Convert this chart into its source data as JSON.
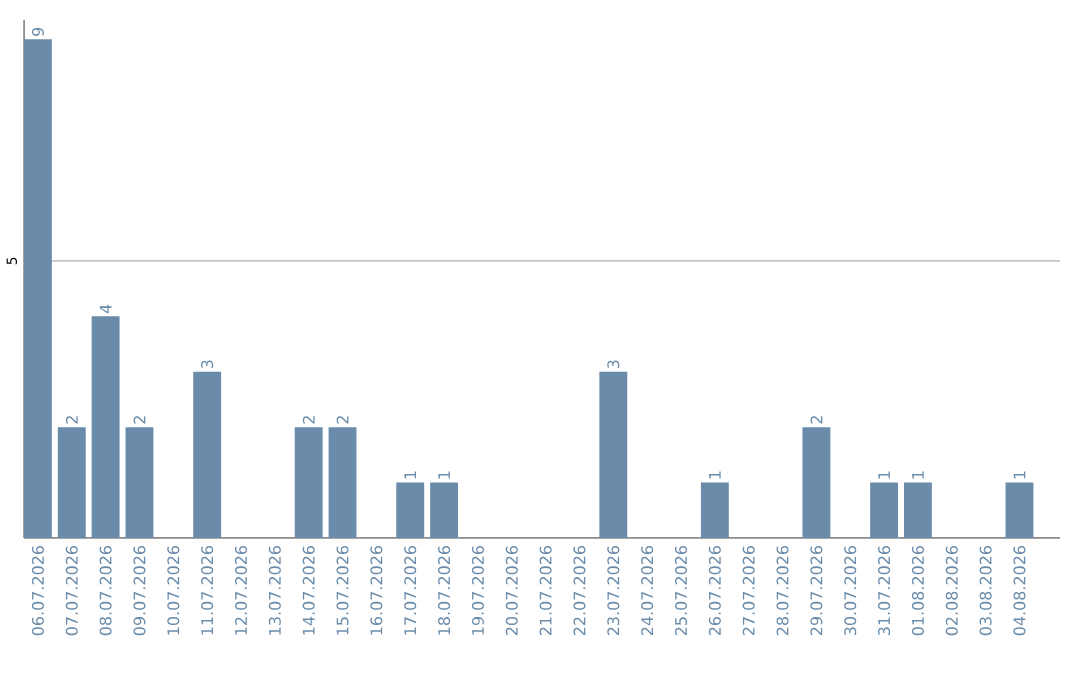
{
  "chart_data": {
    "type": "bar",
    "categories": [
      "06.07.2026",
      "07.07.2026",
      "08.07.2026",
      "09.07.2026",
      "10.07.2026",
      "11.07.2026",
      "12.07.2026",
      "13.07.2026",
      "14.07.2026",
      "15.07.2026",
      "16.07.2026",
      "17.07.2026",
      "18.07.2026",
      "19.07.2026",
      "20.07.2026",
      "21.07.2026",
      "22.07.2026",
      "23.07.2026",
      "24.07.2026",
      "25.07.2026",
      "26.07.2026",
      "27.07.2026",
      "28.07.2026",
      "29.07.2026",
      "30.07.2026",
      "31.07.2026",
      "01.08.2026",
      "02.08.2026",
      "03.08.2026",
      "04.08.2026"
    ],
    "values": [
      9,
      2,
      4,
      2,
      0,
      3,
      0,
      0,
      2,
      2,
      0,
      1,
      1,
      0,
      0,
      0,
      0,
      3,
      0,
      0,
      1,
      0,
      0,
      2,
      0,
      1,
      1,
      0,
      0,
      1
    ],
    "value_labels": [
      "9",
      "2",
      "4",
      "2",
      null,
      "3",
      null,
      null,
      "2",
      "2",
      null,
      "1",
      "1",
      null,
      null,
      null,
      null,
      "3",
      null,
      null,
      "1",
      null,
      null,
      "2",
      null,
      "1",
      "1",
      null,
      null,
      "1"
    ],
    "color": "#6a8caa",
    "ylim": [
      0,
      9.35
    ],
    "yticks": [
      5
    ],
    "grid": "y"
  }
}
